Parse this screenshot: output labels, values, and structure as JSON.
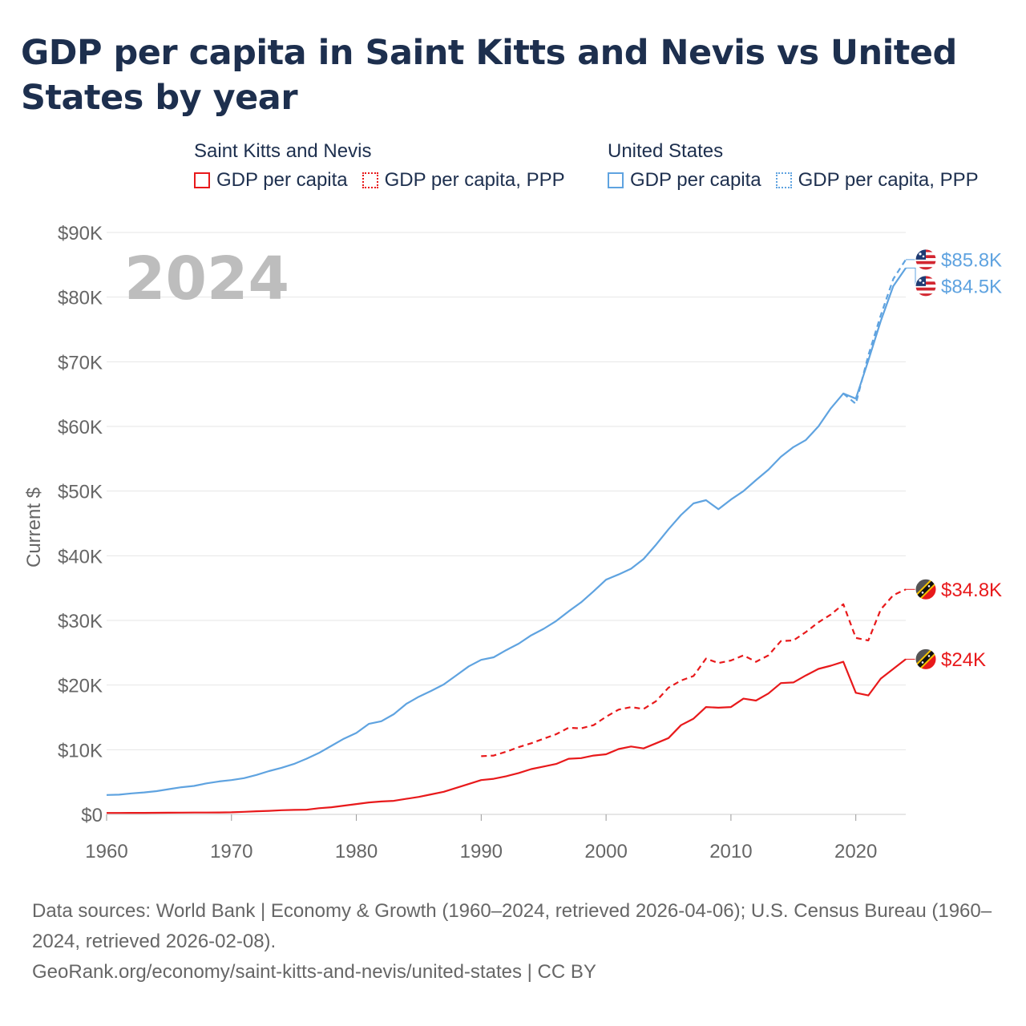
{
  "title": "GDP per capita in Saint Kitts and Nevis vs United States by year",
  "legend": {
    "groups": [
      {
        "name": "Saint Kitts and Nevis",
        "color": "#e8191b",
        "items": [
          "GDP per capita",
          "GDP per capita, PPP"
        ]
      },
      {
        "name": "United States",
        "color": "#5fa3e0",
        "items": [
          "GDP per capita",
          "GDP per capita, PPP"
        ]
      }
    ]
  },
  "source": {
    "line1": "Data sources: World Bank | Economy & Growth (1960–2024, retrieved 2026-04-06); U.S. Census Bureau (1960–2024, retrieved 2026-02-08).",
    "line2": "GeoRank.org/economy/saint-kitts-and-nevis/united-states | CC BY"
  },
  "chart_data": {
    "type": "line",
    "title": "GDP per capita in Saint Kitts and Nevis vs United States by year",
    "year_watermark": "2024",
    "ylabel": "Current $",
    "xlabel": "",
    "xlim": [
      1960,
      2024
    ],
    "ylim": [
      0,
      90000
    ],
    "x_ticks": [
      1960,
      1970,
      1980,
      1990,
      2000,
      2010,
      2020
    ],
    "y_ticks": [
      0,
      10000,
      20000,
      30000,
      40000,
      50000,
      60000,
      70000,
      80000,
      90000
    ],
    "y_tick_labels": [
      "$0",
      "$10K",
      "$20K",
      "$30K",
      "$40K",
      "$50K",
      "$60K",
      "$70K",
      "$80K",
      "$90K"
    ],
    "series": [
      {
        "name": "United States GDP per capita",
        "country": "United States",
        "color": "#5fa3e0",
        "dash": false,
        "end_label": "$84.5K",
        "flag": "us",
        "x_start": 1960,
        "values": [
          3000,
          3050,
          3250,
          3400,
          3600,
          3900,
          4200,
          4400,
          4800,
          5100,
          5300,
          5600,
          6100,
          6700,
          7200,
          7800,
          8600,
          9500,
          10600,
          11700,
          12600,
          14000,
          14400,
          15500,
          17100,
          18200,
          19100,
          20100,
          21500,
          22900,
          23900,
          24300,
          25400,
          26400,
          27700,
          28700,
          29900,
          31400,
          32800,
          34500,
          36300,
          37100,
          38000,
          39500,
          41700,
          44100,
          46300,
          48100,
          48600,
          47200,
          48700,
          50000,
          51700,
          53300,
          55300,
          56800,
          57900,
          60000,
          62800,
          65100,
          64300,
          70200,
          76300,
          81700,
          84500
        ]
      },
      {
        "name": "United States GDP per capita, PPP",
        "country": "United States",
        "color": "#5fa3e0",
        "dash": true,
        "end_label": "$85.8K",
        "flag": "us",
        "x_start": 2019,
        "values": [
          65100,
          63500,
          71000,
          77200,
          82800,
          85800
        ]
      },
      {
        "name": "Saint Kitts and Nevis GDP per capita",
        "country": "Saint Kitts and Nevis",
        "color": "#e8191b",
        "dash": false,
        "end_label": "$24K",
        "flag": "kn",
        "x_start": 1960,
        "values": [
          220,
          225,
          230,
          240,
          250,
          260,
          270,
          280,
          290,
          300,
          320,
          400,
          480,
          550,
          650,
          700,
          720,
          950,
          1100,
          1350,
          1600,
          1850,
          2000,
          2100,
          2400,
          2700,
          3100,
          3500,
          4100,
          4700,
          5300,
          5500,
          5900,
          6400,
          7000,
          7400,
          7800,
          8600,
          8700,
          9100,
          9300,
          10100,
          10500,
          10200,
          11000,
          11800,
          13800,
          14800,
          16600,
          16500,
          16600,
          17900,
          17600,
          18700,
          20300,
          20400,
          21500,
          22500,
          23000,
          23600,
          18800,
          18400,
          21000,
          22500,
          24000
        ]
      },
      {
        "name": "Saint Kitts and Nevis GDP per capita, PPP",
        "country": "Saint Kitts and Nevis",
        "color": "#e8191b",
        "dash": true,
        "end_label": "$34.8K",
        "flag": "kn",
        "x_start": 1990,
        "values": [
          9000,
          9100,
          9700,
          10400,
          11000,
          11700,
          12400,
          13400,
          13300,
          13800,
          15100,
          16200,
          16600,
          16300,
          17500,
          19600,
          20700,
          21400,
          24100,
          23400,
          23800,
          24600,
          23600,
          24600,
          26800,
          26900,
          28200,
          29700,
          30900,
          32500,
          27300,
          26900,
          31700,
          33900,
          34800
        ]
      }
    ]
  }
}
